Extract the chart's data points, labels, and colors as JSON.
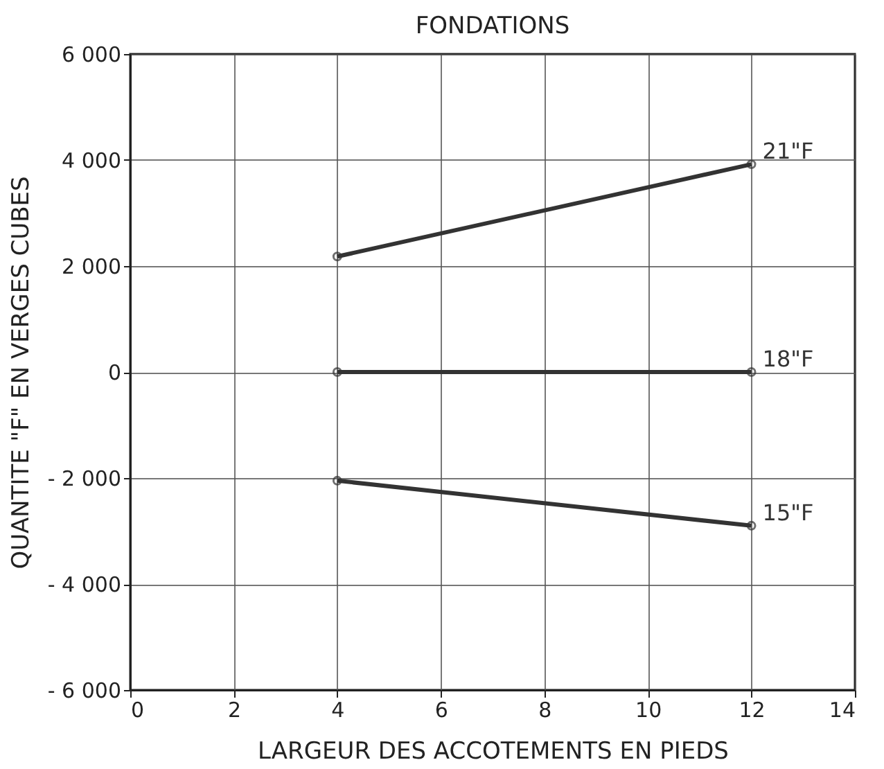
{
  "chart_data": {
    "type": "line",
    "title": "FONDATIONS",
    "xlabel": "LARGEUR DES ACCOTEMENTS EN PIEDS",
    "ylabel": "QUANTITE \"F\" EN VERGES CUBES",
    "x": [
      4,
      12
    ],
    "series": [
      {
        "name": "21\"F",
        "color": "#333333",
        "values": [
          2180,
          3920
        ]
      },
      {
        "name": "18\"F",
        "color": "#333333",
        "values": [
          0,
          0
        ]
      },
      {
        "name": "15\"F",
        "color": "#333333",
        "values": [
          -2050,
          -2900
        ]
      }
    ],
    "xlim": [
      0,
      14
    ],
    "xticks": [
      0,
      2,
      4,
      6,
      8,
      10,
      12,
      14
    ],
    "ylim": [
      -6000,
      6000
    ],
    "yticks": [
      {
        "value": -6000,
        "label": "- 6 000"
      },
      {
        "value": -4000,
        "label": "- 4 000"
      },
      {
        "value": -2000,
        "label": "- 2 000"
      },
      0,
      {
        "value": 2000,
        "label": "2 000"
      },
      {
        "value": 4000,
        "label": "4 000"
      },
      {
        "value": 6000,
        "label": "6 000"
      }
    ],
    "grid": true,
    "marker": "circle",
    "line_style": "solid"
  }
}
